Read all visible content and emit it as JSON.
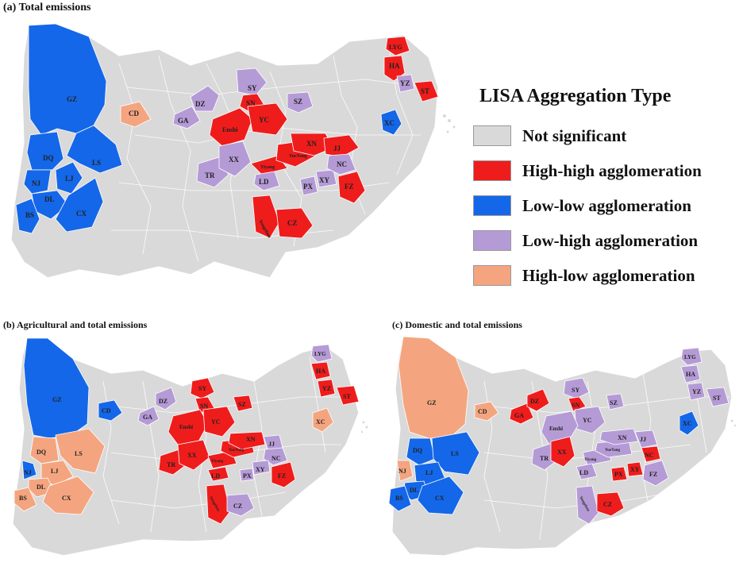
{
  "panels": [
    {
      "title": "(a) Total emissions"
    },
    {
      "title": "(b) Agricultural and total emissions"
    },
    {
      "title": "(c) Domestic and total emissions"
    }
  ],
  "legend": {
    "title": "LISA Aggregation Type",
    "items": [
      {
        "label": "Not significant",
        "color": "#d9d9d9"
      },
      {
        "label": "High-high agglomeration",
        "color": "#ef1c1c"
      },
      {
        "label": "Low-low agglomeration",
        "color": "#1467e8"
      },
      {
        "label": "Low-high agglomeration",
        "color": "#b59bd6"
      },
      {
        "label": "High-low agglomeration",
        "color": "#f4a57f"
      }
    ]
  },
  "map_a": {
    "regions": [
      {
        "code": "GZ",
        "type": "low-low"
      },
      {
        "code": "DQ",
        "type": "low-low"
      },
      {
        "code": "NJ",
        "type": "low-low"
      },
      {
        "code": "LJ",
        "type": "low-low"
      },
      {
        "code": "LS",
        "type": "low-low"
      },
      {
        "code": "DL",
        "type": "low-low"
      },
      {
        "code": "BS",
        "type": "low-low"
      },
      {
        "code": "CX",
        "type": "low-low"
      },
      {
        "code": "CD",
        "type": "high-low"
      },
      {
        "code": "GA",
        "type": "low-high"
      },
      {
        "code": "DZ",
        "type": "low-high"
      },
      {
        "code": "SY",
        "type": "low-high"
      },
      {
        "code": "SN",
        "type": "high-high"
      },
      {
        "code": "Enshi",
        "type": "high-high"
      },
      {
        "code": "YC",
        "type": "high-high"
      },
      {
        "code": "SZ",
        "type": "low-high"
      },
      {
        "code": "TR",
        "type": "low-high"
      },
      {
        "code": "XX",
        "type": "low-high"
      },
      {
        "code": "XN",
        "type": "high-high"
      },
      {
        "code": "JJ",
        "type": "high-high"
      },
      {
        "code": "Yiyang",
        "type": "high-high"
      },
      {
        "code": "YueYang",
        "type": "high-high"
      },
      {
        "code": "LD",
        "type": "low-high"
      },
      {
        "code": "PX",
        "type": "low-high"
      },
      {
        "code": "XY",
        "type": "low-high"
      },
      {
        "code": "NC",
        "type": "low-high"
      },
      {
        "code": "FZ",
        "type": "high-high"
      },
      {
        "code": "Yongzhou",
        "type": "high-high"
      },
      {
        "code": "CZ",
        "type": "high-high"
      },
      {
        "code": "LYG",
        "type": "high-high"
      },
      {
        "code": "HA",
        "type": "high-high"
      },
      {
        "code": "YZ",
        "type": "low-high"
      },
      {
        "code": "ST",
        "type": "high-high"
      },
      {
        "code": "XC",
        "type": "low-low"
      }
    ]
  },
  "map_b": {
    "regions": [
      {
        "code": "GZ",
        "type": "low-low"
      },
      {
        "code": "CD",
        "type": "low-low"
      },
      {
        "code": "GA",
        "type": "low-high"
      },
      {
        "code": "DZ",
        "type": "low-high"
      },
      {
        "code": "DQ",
        "type": "high-low"
      },
      {
        "code": "NJ",
        "type": "low-low"
      },
      {
        "code": "LJ",
        "type": "high-low"
      },
      {
        "code": "LS",
        "type": "high-low"
      },
      {
        "code": "DL",
        "type": "high-low"
      },
      {
        "code": "BS",
        "type": "high-low"
      },
      {
        "code": "CX",
        "type": "high-low"
      },
      {
        "code": "SY",
        "type": "high-high"
      },
      {
        "code": "SN",
        "type": "high-high"
      },
      {
        "code": "Enshi",
        "type": "high-high"
      },
      {
        "code": "YC",
        "type": "high-high"
      },
      {
        "code": "SZ",
        "type": "high-high"
      },
      {
        "code": "TR",
        "type": "high-high"
      },
      {
        "code": "XX",
        "type": "high-high"
      },
      {
        "code": "XN",
        "type": "high-high"
      },
      {
        "code": "JJ",
        "type": "low-high"
      },
      {
        "code": "Yiyang",
        "type": "high-high"
      },
      {
        "code": "YueYang",
        "type": "high-high"
      },
      {
        "code": "LD",
        "type": "high-high"
      },
      {
        "code": "NC",
        "type": "low-high"
      },
      {
        "code": "PX",
        "type": "low-high"
      },
      {
        "code": "XY",
        "type": "low-high"
      },
      {
        "code": "FZ",
        "type": "high-high"
      },
      {
        "code": "Yongzhou",
        "type": "high-high"
      },
      {
        "code": "CZ",
        "type": "low-high"
      },
      {
        "code": "LYG",
        "type": "low-high"
      },
      {
        "code": "HA",
        "type": "high-high"
      },
      {
        "code": "YZ",
        "type": "high-high"
      },
      {
        "code": "ST",
        "type": "high-high"
      },
      {
        "code": "XC",
        "type": "high-low"
      }
    ]
  },
  "map_c": {
    "regions": [
      {
        "code": "GZ",
        "type": "high-low"
      },
      {
        "code": "CD",
        "type": "high-low"
      },
      {
        "code": "GA",
        "type": "high-high"
      },
      {
        "code": "DZ",
        "type": "high-high"
      },
      {
        "code": "SY",
        "type": "low-high"
      },
      {
        "code": "SN",
        "type": "high-high"
      },
      {
        "code": "SZ",
        "type": "low-high"
      },
      {
        "code": "YC",
        "type": "low-high"
      },
      {
        "code": "Enshi",
        "type": "low-high"
      },
      {
        "code": "DQ",
        "type": "low-low"
      },
      {
        "code": "NJ",
        "type": "high-low"
      },
      {
        "code": "LJ",
        "type": "low-low"
      },
      {
        "code": "LS",
        "type": "low-low"
      },
      {
        "code": "DL",
        "type": "low-low"
      },
      {
        "code": "BS",
        "type": "low-low"
      },
      {
        "code": "CX",
        "type": "low-low"
      },
      {
        "code": "TR",
        "type": "low-high"
      },
      {
        "code": "XX",
        "type": "high-high"
      },
      {
        "code": "XN",
        "type": "low-high"
      },
      {
        "code": "JJ",
        "type": "low-high"
      },
      {
        "code": "Yiyang",
        "type": "low-high"
      },
      {
        "code": "YueYang",
        "type": "low-high"
      },
      {
        "code": "LD",
        "type": "low-high"
      },
      {
        "code": "PX",
        "type": "high-high"
      },
      {
        "code": "XY",
        "type": "high-high"
      },
      {
        "code": "NC",
        "type": "high-high"
      },
      {
        "code": "FZ",
        "type": "low-high"
      },
      {
        "code": "Yongzhou",
        "type": "low-high"
      },
      {
        "code": "CZ",
        "type": "high-high"
      },
      {
        "code": "LYG",
        "type": "low-high"
      },
      {
        "code": "HA",
        "type": "low-high"
      },
      {
        "code": "YZ",
        "type": "low-high"
      },
      {
        "code": "ST",
        "type": "low-high"
      },
      {
        "code": "XC",
        "type": "low-low"
      }
    ]
  }
}
